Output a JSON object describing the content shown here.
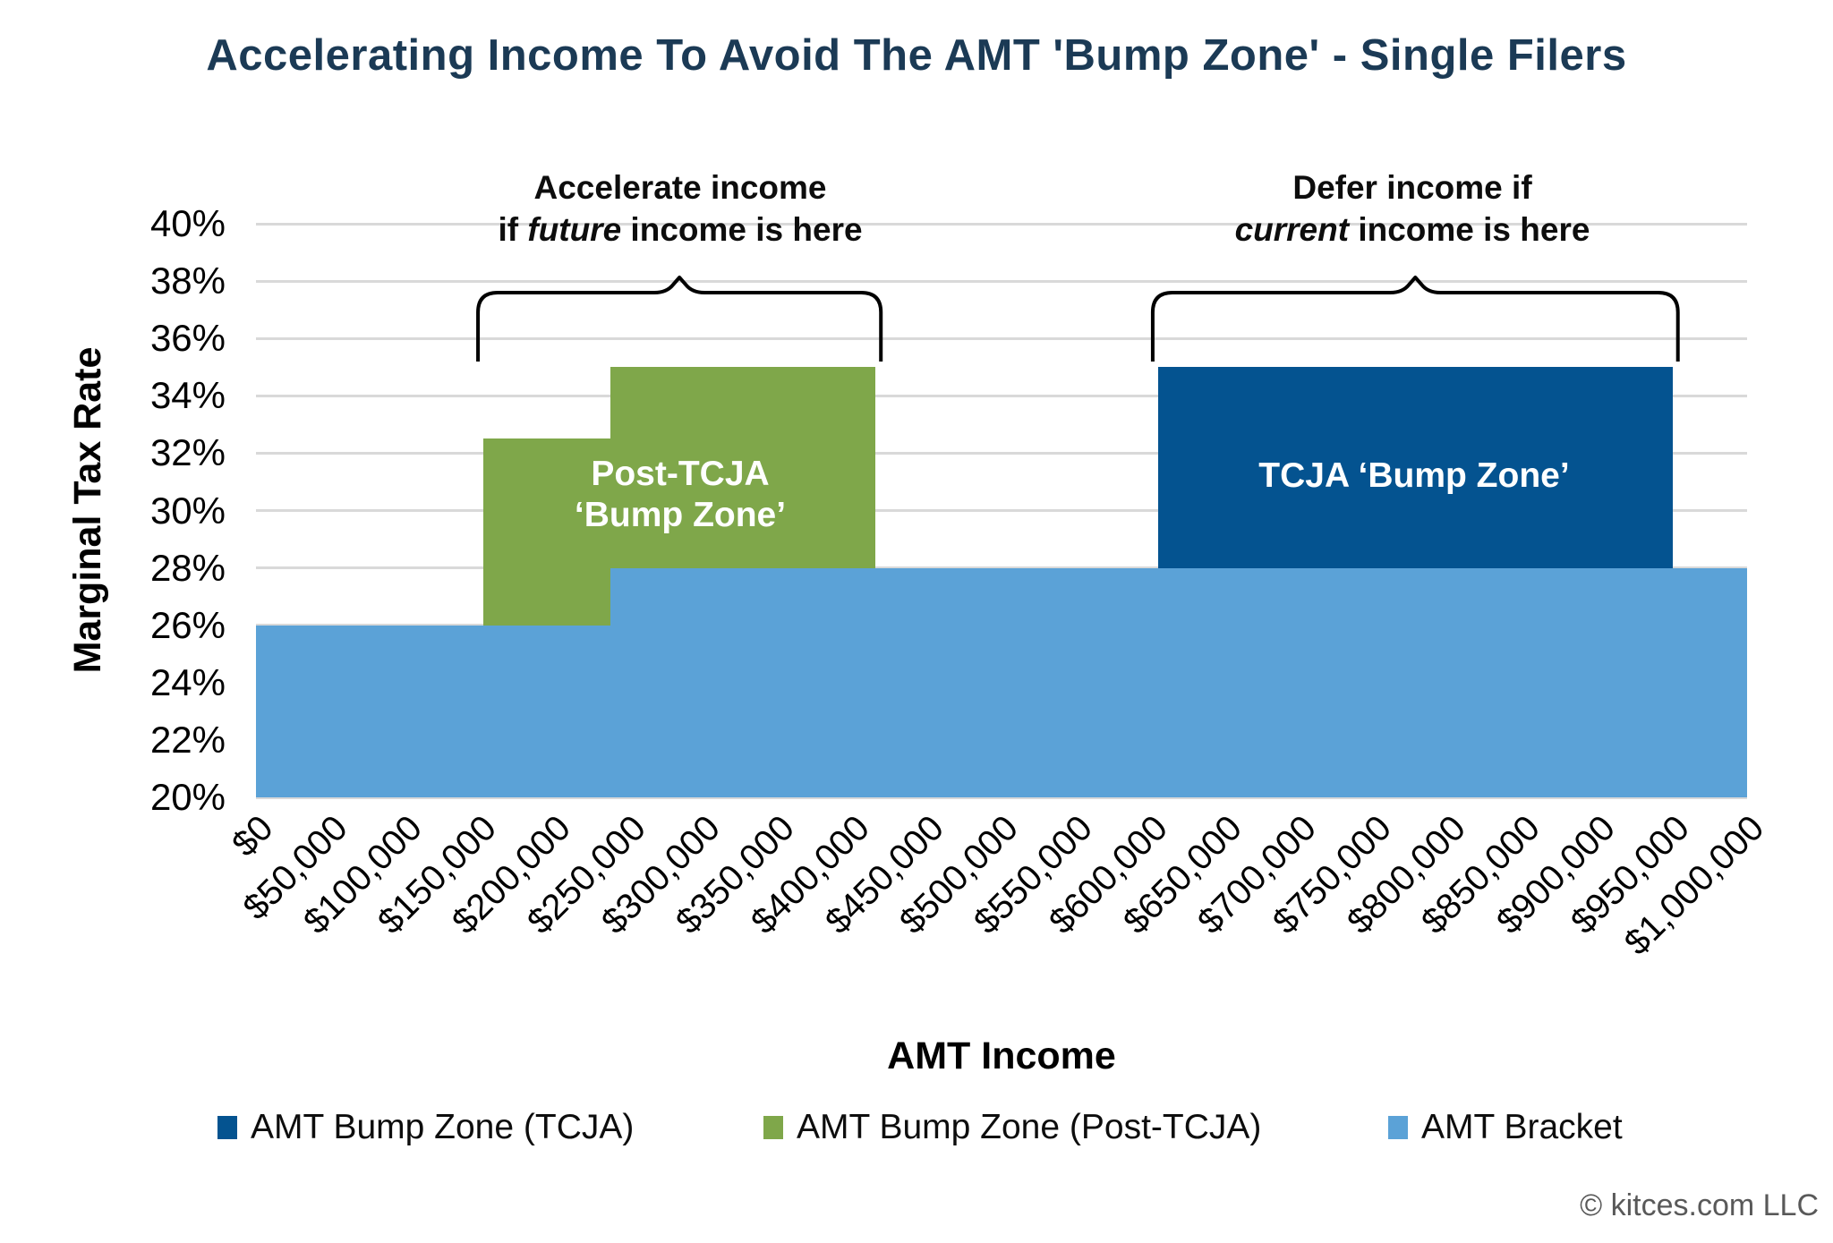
{
  "title": "Accelerating Income To Avoid The AMT 'Bump Zone' - Single Filers",
  "footer": "© kitces.com LLC",
  "colors": {
    "title_text": "#1B3A55",
    "tcja_zone": "#045390",
    "post_tcja_zone": "#7FA74A",
    "amt_bracket": "#5BA2D7",
    "gridline": "#D9D9D9",
    "annotation_text": "#0d0d0d",
    "footer_text": "#595959",
    "zone_label_text": "#ffffff"
  },
  "annotations": {
    "left": {
      "line1": "Accelerate income",
      "line2_pre": "if ",
      "line2_em": "future",
      "line2_post": " income is here"
    },
    "right": {
      "line1": "Defer income if",
      "line2_pre": "",
      "line2_em": "current",
      "line2_post": " income is here"
    }
  },
  "zone_labels": {
    "post_tcja_line1": "Post-TCJA",
    "post_tcja_line2": "‘Bump Zone’",
    "tcja": "TCJA ‘Bump Zone’"
  },
  "chart_data": {
    "type": "area",
    "title": "Accelerating Income To Avoid The AMT 'Bump Zone' - Single Filers",
    "xlabel": "AMT Income",
    "ylabel": "Marginal Tax Rate",
    "x_range": [
      0,
      1000000
    ],
    "y_range_percent": [
      20,
      40
    ],
    "y_tick_step_percent": 2,
    "grid": true,
    "x_ticks": [
      "$0",
      "$50,000",
      "$100,000",
      "$150,000",
      "$200,000",
      "$250,000",
      "$300,000",
      "$350,000",
      "$400,000",
      "$450,000",
      "$500,000",
      "$550,000",
      "$600,000",
      "$650,000",
      "$700,000",
      "$750,000",
      "$800,000",
      "$850,000",
      "$900,000",
      "$950,000",
      "$1,000,000"
    ],
    "y_ticks": [
      "20%",
      "22%",
      "24%",
      "26%",
      "28%",
      "30%",
      "32%",
      "34%",
      "36%",
      "38%",
      "40%"
    ],
    "series": [
      {
        "name": "AMT Bracket",
        "color_key": "amt_bracket",
        "segments": [
          {
            "from_income": 0,
            "to_income": 237500,
            "rate_percent": 26,
            "base_percent": 20
          },
          {
            "from_income": 237500,
            "to_income": 1000000,
            "rate_percent": 28,
            "base_percent": 20
          }
        ]
      },
      {
        "name": "AMT Bump Zone (Post-TCJA)",
        "color_key": "post_tcja_zone",
        "segments": [
          {
            "from_income": 152500,
            "to_income": 237500,
            "rate_percent": 32.5,
            "base_percent": 26
          },
          {
            "from_income": 237500,
            "to_income": 415500,
            "rate_percent": 35,
            "base_percent": 28
          }
        ]
      },
      {
        "name": "AMT Bump Zone (TCJA)",
        "color_key": "tcja_zone",
        "segments": [
          {
            "from_income": 605000,
            "to_income": 950000,
            "rate_percent": 35,
            "base_percent": 28
          }
        ]
      }
    ],
    "braces": [
      {
        "from_income": 152500,
        "to_income": 415500,
        "links_to": "annotation-left"
      },
      {
        "from_income": 605000,
        "to_income": 950000,
        "links_to": "annotation-right"
      }
    ],
    "legend": [
      {
        "label": "AMT Bump Zone (TCJA)",
        "color_key": "tcja_zone"
      },
      {
        "label": "AMT Bump Zone (Post-TCJA)",
        "color_key": "post_tcja_zone"
      },
      {
        "label": "AMT Bracket",
        "color_key": "amt_bracket"
      }
    ],
    "legend_position": "bottom"
  }
}
